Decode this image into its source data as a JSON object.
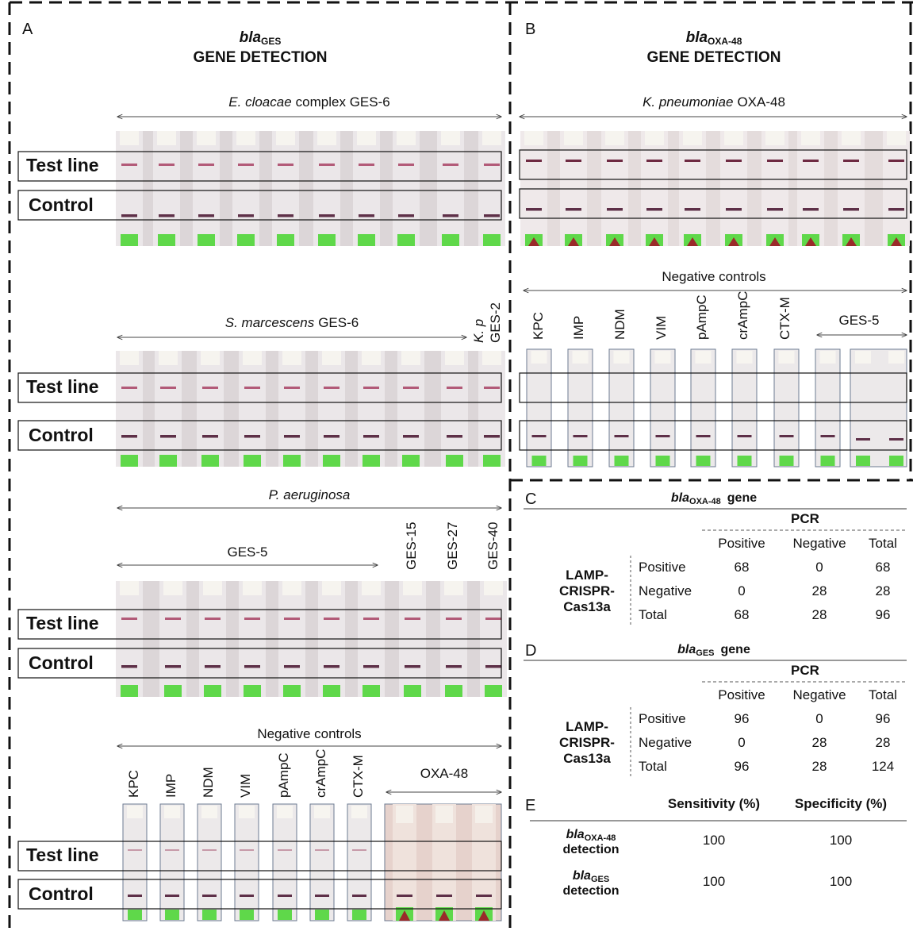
{
  "panel_a": {
    "letter": "A",
    "title": {
      "gene": "bla",
      "subscript": "GES",
      "text": "GENE DETECTION"
    },
    "rows": [
      {
        "title_italic": "E. cloacae",
        "title": "complex GES-6",
        "test_line": "Test line",
        "control": "Control"
      },
      {
        "title_italic": "S. marcescens",
        "title": "GES-6",
        "extra_italic": "K. p",
        "extra": "GES-2",
        "test_line": "Test line",
        "control": "Control"
      },
      {
        "title_italic": "P. aeruginosa",
        "group": "GES-5",
        "lanes": [
          "GES-15",
          "GES-27",
          "GES-40"
        ],
        "test_line": "Test line",
        "control": "Control"
      },
      {
        "title": "Negative controls",
        "lanes": [
          "KPC",
          "IMP",
          "NDM",
          "VIM",
          "pAmpC",
          "crAmpC",
          "CTX-M"
        ],
        "group": "OXA-48",
        "test_line": "Test line",
        "control": "Control"
      }
    ]
  },
  "panel_b": {
    "letter": "B",
    "title": {
      "gene": "bla",
      "subscript": "OXA-48",
      "text": "GENE DETECTION"
    },
    "rows": [
      {
        "title_italic": "K. pneumoniae",
        "title": "OXA-48"
      },
      {
        "title": "Negative controls",
        "lanes": [
          "KPC",
          "IMP",
          "NDM",
          "VIM",
          "pAmpC",
          "crAmpC",
          "CTX-M"
        ],
        "group": "GES-5"
      }
    ]
  },
  "panel_c": {
    "letter": "C",
    "title": {
      "gene": "bla",
      "subscript": "OXA-48",
      "text": "gene"
    },
    "column_group": "PCR",
    "columns": [
      "Positive",
      "Negative",
      "Total"
    ],
    "row_group": [
      "LAMP-",
      "CRISPR-",
      "Cas13a"
    ],
    "rows": [
      [
        "Positive",
        68,
        0,
        68
      ],
      [
        "Negative",
        0,
        28,
        28
      ],
      [
        "Total",
        68,
        28,
        96
      ]
    ]
  },
  "panel_d": {
    "letter": "D",
    "title": {
      "gene": "bla",
      "subscript": "GES",
      "text": "gene"
    },
    "column_group": "PCR",
    "columns": [
      "Positive",
      "Negative",
      "Total"
    ],
    "row_group": [
      "LAMP-",
      "CRISPR-",
      "Cas13a"
    ],
    "rows": [
      [
        "Positive",
        96,
        0,
        96
      ],
      [
        "Negative",
        0,
        28,
        28
      ],
      [
        "Total",
        96,
        28,
        124
      ]
    ]
  },
  "panel_e": {
    "letter": "E",
    "columns": [
      "Sensitivity (%)",
      "Specificity (%)"
    ],
    "rows": [
      {
        "gene": "bla",
        "subscript": "OXA-48",
        "text": "detection",
        "values": [
          100,
          100
        ]
      },
      {
        "gene": "bla",
        "subscript": "GES",
        "text": "detection",
        "values": [
          100,
          100
        ]
      }
    ]
  }
}
